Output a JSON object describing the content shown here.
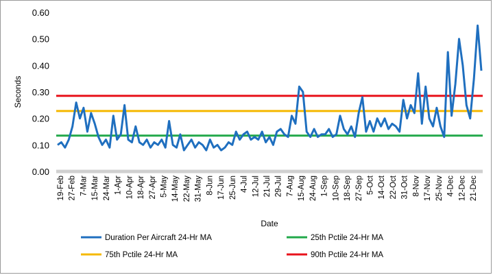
{
  "chart_data": {
    "type": "line",
    "title": "",
    "xlabel": "Date",
    "ylabel": "Seconds",
    "ylim": [
      0,
      0.6
    ],
    "yticks": [
      "0.00",
      "0.10",
      "0.20",
      "0.30",
      "0.40",
      "0.50",
      "0.60"
    ],
    "xtick_labels": [
      "19-Feb",
      "27-Feb",
      "7-Mar",
      "15-Mar",
      "24-Mar",
      "1-Apr",
      "10-Apr",
      "18-Apr",
      "27-Apr",
      "5-May",
      "14-May",
      "22-May",
      "31-May",
      "8-Jun",
      "17-Jun",
      "25-Jun",
      "4-Jul",
      "12-Jul",
      "21-Jul",
      "29-Jul",
      "7-Aug",
      "15-Aug",
      "24-Aug",
      "1-Sep",
      "10-Sep",
      "18-Sep",
      "27-Sep",
      "5-Oct",
      "14-Oct",
      "22-Oct",
      "31-Oct",
      "8-Nov",
      "17-Nov",
      "25-Nov",
      "4-Dec",
      "12-Dec",
      "21-Dec"
    ],
    "grid": false,
    "legend_position": "bottom",
    "series": [
      {
        "name": "Duration Per Aircraft 24-Hr MA",
        "color": "#1f6fbf",
        "values": [
          0.1,
          0.11,
          0.09,
          0.12,
          0.17,
          0.26,
          0.2,
          0.24,
          0.15,
          0.22,
          0.18,
          0.13,
          0.1,
          0.12,
          0.09,
          0.21,
          0.12,
          0.14,
          0.25,
          0.12,
          0.11,
          0.17,
          0.11,
          0.1,
          0.12,
          0.09,
          0.11,
          0.1,
          0.12,
          0.09,
          0.19,
          0.1,
          0.09,
          0.14,
          0.08,
          0.1,
          0.12,
          0.09,
          0.11,
          0.1,
          0.08,
          0.12,
          0.09,
          0.1,
          0.08,
          0.09,
          0.11,
          0.1,
          0.15,
          0.12,
          0.14,
          0.15,
          0.12,
          0.13,
          0.12,
          0.15,
          0.11,
          0.13,
          0.1,
          0.15,
          0.16,
          0.14,
          0.13,
          0.21,
          0.18,
          0.32,
          0.3,
          0.15,
          0.13,
          0.16,
          0.13,
          0.14,
          0.14,
          0.16,
          0.13,
          0.14,
          0.21,
          0.16,
          0.14,
          0.17,
          0.13,
          0.22,
          0.28,
          0.15,
          0.19,
          0.15,
          0.2,
          0.17,
          0.2,
          0.16,
          0.18,
          0.17,
          0.15,
          0.27,
          0.2,
          0.25,
          0.22,
          0.37,
          0.18,
          0.32,
          0.2,
          0.17,
          0.24,
          0.17,
          0.13,
          0.45,
          0.21,
          0.33,
          0.5,
          0.4,
          0.25,
          0.2,
          0.35,
          0.55,
          0.38
        ]
      },
      {
        "name": "25th Pctile 24-Hr MA",
        "color": "#22a84a",
        "constant": 0.135
      },
      {
        "name": "75th Pctile 24-Hr MA",
        "color": "#f5b800",
        "constant": 0.228
      },
      {
        "name": "90th Pctile 24-Hr MA",
        "color": "#e8121b",
        "constant": 0.285
      }
    ]
  }
}
